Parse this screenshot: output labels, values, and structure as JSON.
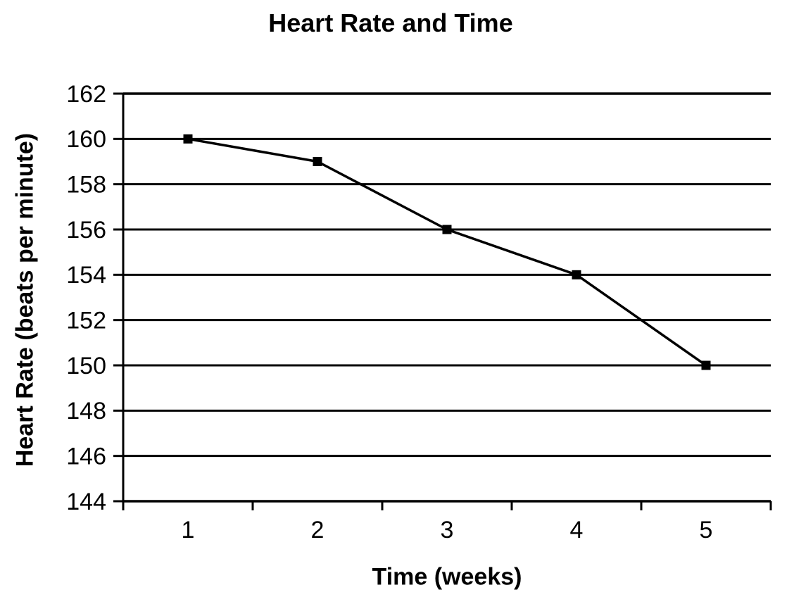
{
  "chart_data": {
    "type": "line",
    "title": "Heart Rate and Time",
    "xlabel": "Time (weeks)",
    "ylabel": "Heart Rate (beats per minute)",
    "x": [
      1,
      2,
      3,
      4,
      5
    ],
    "series": [
      {
        "name": "Heart Rate",
        "values": [
          160,
          159,
          156,
          154,
          150
        ]
      }
    ],
    "ylim": [
      144,
      162
    ],
    "ytick_step": 2,
    "yticks": [
      162,
      160,
      158,
      156,
      154,
      152,
      150,
      148,
      146,
      144
    ],
    "xticks": [
      1,
      2,
      3,
      4,
      5
    ],
    "grid": "horizontal",
    "legend": "none",
    "marker": "square",
    "line_color": "#000000",
    "marker_color": "#000000",
    "grid_color": "#000000",
    "axis_color": "#000000",
    "text_color": "#000000",
    "background": "#ffffff"
  }
}
